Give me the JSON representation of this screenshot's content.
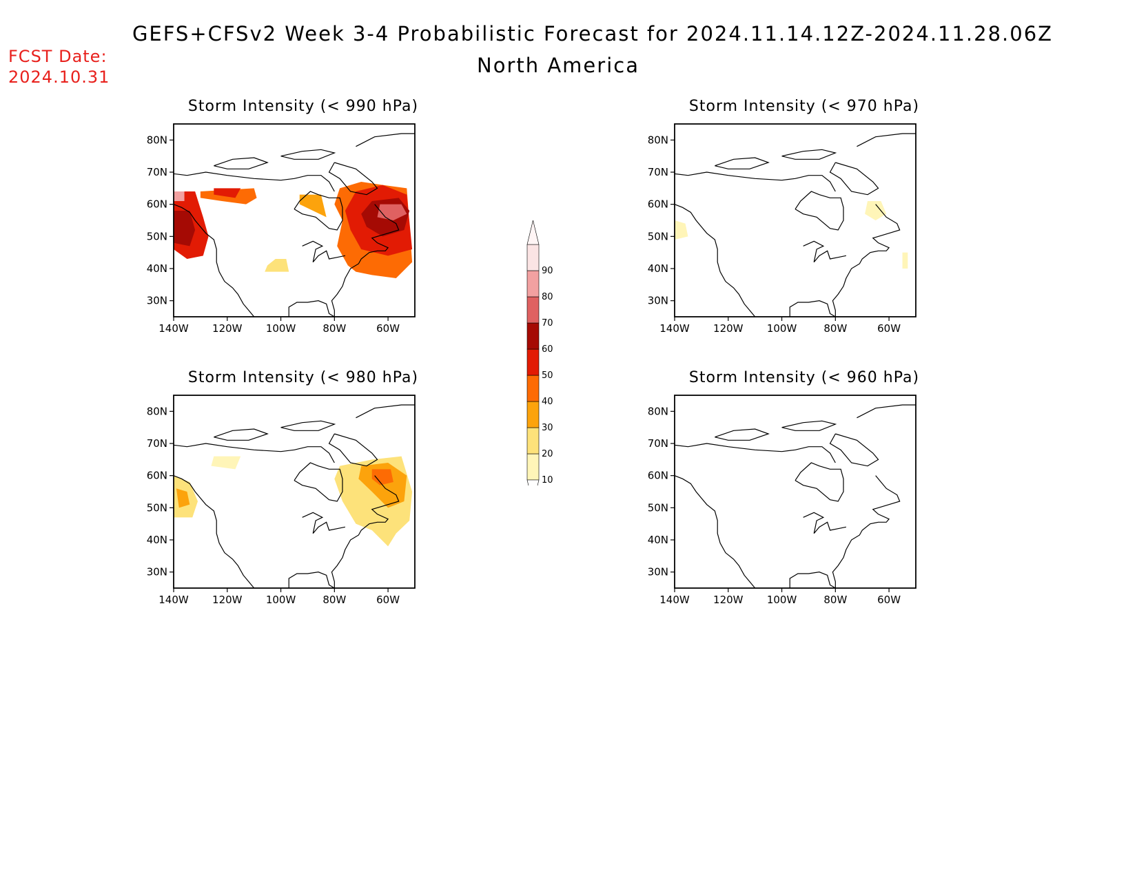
{
  "header": {
    "title": "GEFS+CFSv2 Week 3-4 Probabilistic Forecast for 2024.11.14.12Z-2024.11.28.06Z",
    "subtitle": "North America",
    "fcst_label": "FCST Date:",
    "fcst_date": "2024.10.31",
    "fcst_color": "#e8201c"
  },
  "panels": [
    {
      "title": "Storm Intensity (< 990 hPa)"
    },
    {
      "title": "Storm Intensity (< 970 hPa)"
    },
    {
      "title": "Storm Intensity (< 980 hPa)"
    },
    {
      "title": "Storm Intensity (< 960 hPa)"
    }
  ],
  "axes": {
    "lat_labels": [
      "80N",
      "70N",
      "60N",
      "50N",
      "40N",
      "30N"
    ],
    "lon_labels": [
      "140W",
      "120W",
      "100W",
      "80W",
      "60W"
    ]
  },
  "colorbar": {
    "levels": [
      "10",
      "20",
      "30",
      "40",
      "50",
      "60",
      "70",
      "80",
      "90"
    ],
    "colors": [
      "#fff5b8",
      "#fde27a",
      "#fca30c",
      "#fd6b04",
      "#e21b04",
      "#a50a04",
      "#df6161",
      "#f2a1a1",
      "#fbe4e4"
    ]
  }
}
